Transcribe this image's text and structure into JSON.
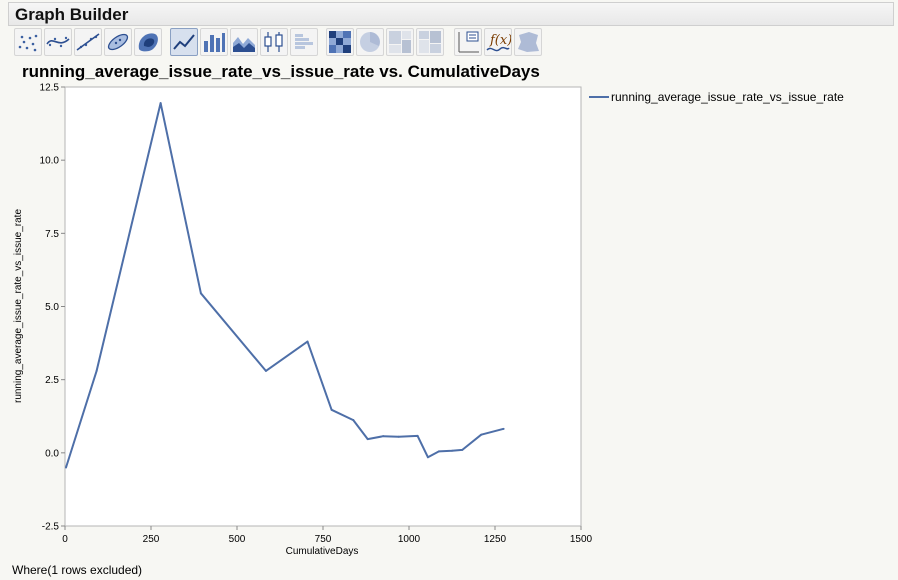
{
  "app": {
    "title": "Graph Builder"
  },
  "toolbar": {
    "tools": [
      {
        "icon": "points-icon",
        "active": false
      },
      {
        "icon": "smoother-icon",
        "active": false
      },
      {
        "icon": "line-of-fit-icon",
        "active": false
      },
      {
        "icon": "ellipse-icon",
        "active": false
      },
      {
        "icon": "contour-icon",
        "active": false
      },
      {
        "icon": "line-chart-icon",
        "active": true
      },
      {
        "icon": "bar-chart-icon",
        "active": false
      },
      {
        "icon": "area-chart-icon",
        "active": false
      },
      {
        "icon": "box-plot-icon",
        "active": false
      },
      {
        "icon": "histogram-icon",
        "active": false
      },
      {
        "icon": "heatmap-icon",
        "active": false
      },
      {
        "icon": "pie-chart-icon",
        "active": false
      },
      {
        "icon": "treemap-icon",
        "active": false
      },
      {
        "icon": "mosaic-icon",
        "active": false
      },
      {
        "icon": "caption-box-icon",
        "active": false
      },
      {
        "icon": "formula-icon",
        "active": false
      },
      {
        "icon": "map-shape-icon",
        "active": false
      }
    ]
  },
  "chart_data": {
    "type": "line",
    "title": "running_average_issue_rate_vs_issue_rate vs. CumulativeDays",
    "xlabel": "CumulativeDays",
    "ylabel": "running_average_issue_rate_vs_issue_rate",
    "xlim": [
      0,
      1500
    ],
    "ylim": [
      -2.5,
      12.5
    ],
    "xticks": [
      "0",
      "250",
      "500",
      "750",
      "1000",
      "1250",
      "1500"
    ],
    "yticks": [
      "12.5",
      "10.0",
      "7.5",
      "5.0",
      "2.5",
      "0.0",
      "-2.5"
    ],
    "xtick_values": [
      0,
      250,
      500,
      750,
      1000,
      1250,
      1500
    ],
    "ytick_values": [
      12.5,
      10.0,
      7.5,
      5.0,
      2.5,
      0.0,
      -2.5
    ],
    "legend_position": "right",
    "series": [
      {
        "name": "running_average_issue_rate_vs_issue_rate",
        "color": "#4e6fa8",
        "x": [
          3,
          92,
          278,
          395,
          584,
          705,
          775,
          838,
          880,
          925,
          970,
          1025,
          1055,
          1087,
          1125,
          1155,
          1210,
          1275
        ],
        "y": [
          -0.5,
          2.8,
          11.95,
          5.45,
          2.8,
          3.8,
          1.47,
          1.12,
          0.47,
          0.57,
          0.55,
          0.58,
          -0.15,
          0.05,
          0.07,
          0.1,
          0.62,
          0.82
        ]
      }
    ]
  },
  "footer": {
    "status": "Where(1 rows excluded)"
  }
}
